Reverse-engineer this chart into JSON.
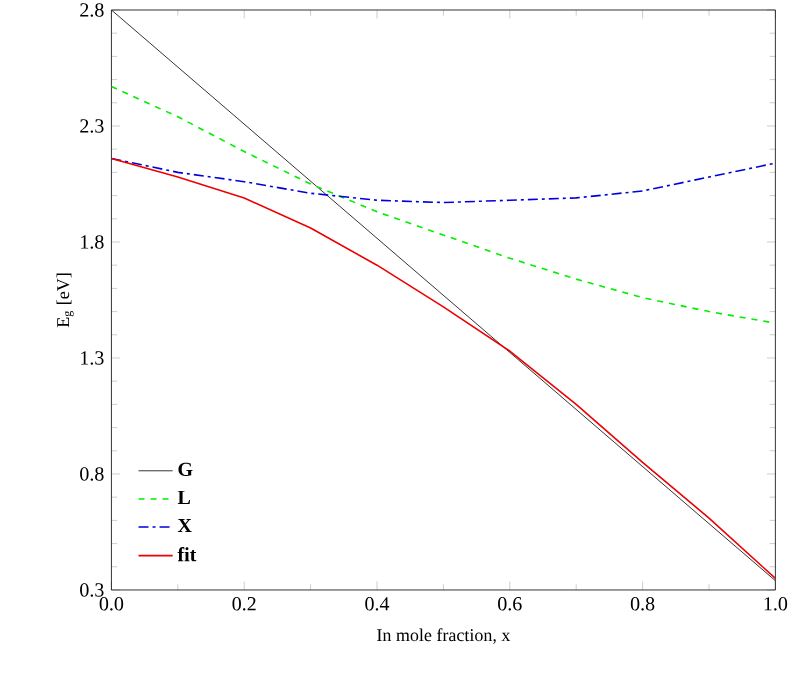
{
  "chart_data": {
    "type": "line",
    "xlabel": "In mole fraction, x",
    "ylabel": "E$_{g}$ [eV]",
    "xlim": [
      0,
      1
    ],
    "ylim": [
      0.3,
      2.8
    ],
    "xticks": [
      {
        "value": 0,
        "label": "0.0"
      },
      0.2,
      0.4,
      0.6,
      0.8,
      {
        "value": 1,
        "label": "1.0"
      }
    ],
    "yticks": [
      0.3,
      0.8,
      1.3,
      1.8,
      2.3,
      2.8
    ],
    "legend": "bottom left",
    "grid": false,
    "marker": "none",
    "series": [
      {
        "name": "G",
        "color": "#000000",
        "line_style": "solid",
        "x": [
          0,
          1
        ],
        "values": [
          2.8,
          0.34
        ]
      },
      {
        "name": "L",
        "color": "#00ee00",
        "line_style": "dashed",
        "x": [
          0,
          0.1,
          0.2,
          0.3,
          0.4,
          0.5,
          0.6,
          0.7,
          0.8,
          0.9,
          1
        ],
        "values": [
          2.47,
          2.34,
          2.19,
          2.05,
          1.93,
          1.83,
          1.73,
          1.64,
          1.56,
          1.5,
          1.45
        ]
      },
      {
        "name": "X",
        "color": "#0000dd",
        "line_style": "dashdot",
        "x": [
          0,
          0.1,
          0.2,
          0.3,
          0.4,
          0.5,
          0.6,
          0.7,
          0.8,
          0.9,
          1
        ],
        "values": [
          2.16,
          2.1,
          2.06,
          2.01,
          1.98,
          1.97,
          1.98,
          1.99,
          2.02,
          2.08,
          2.14
        ]
      },
      {
        "name": "fit",
        "color": "#ee0000",
        "line_style": "solid",
        "x": [
          0,
          0.1,
          0.2,
          0.3,
          0.4,
          0.5,
          0.6,
          0.7,
          0.8,
          0.9,
          1
        ],
        "values": [
          2.16,
          2.08,
          1.99,
          1.86,
          1.7,
          1.52,
          1.33,
          1.1,
          0.85,
          0.61,
          0.35
        ]
      }
    ]
  }
}
